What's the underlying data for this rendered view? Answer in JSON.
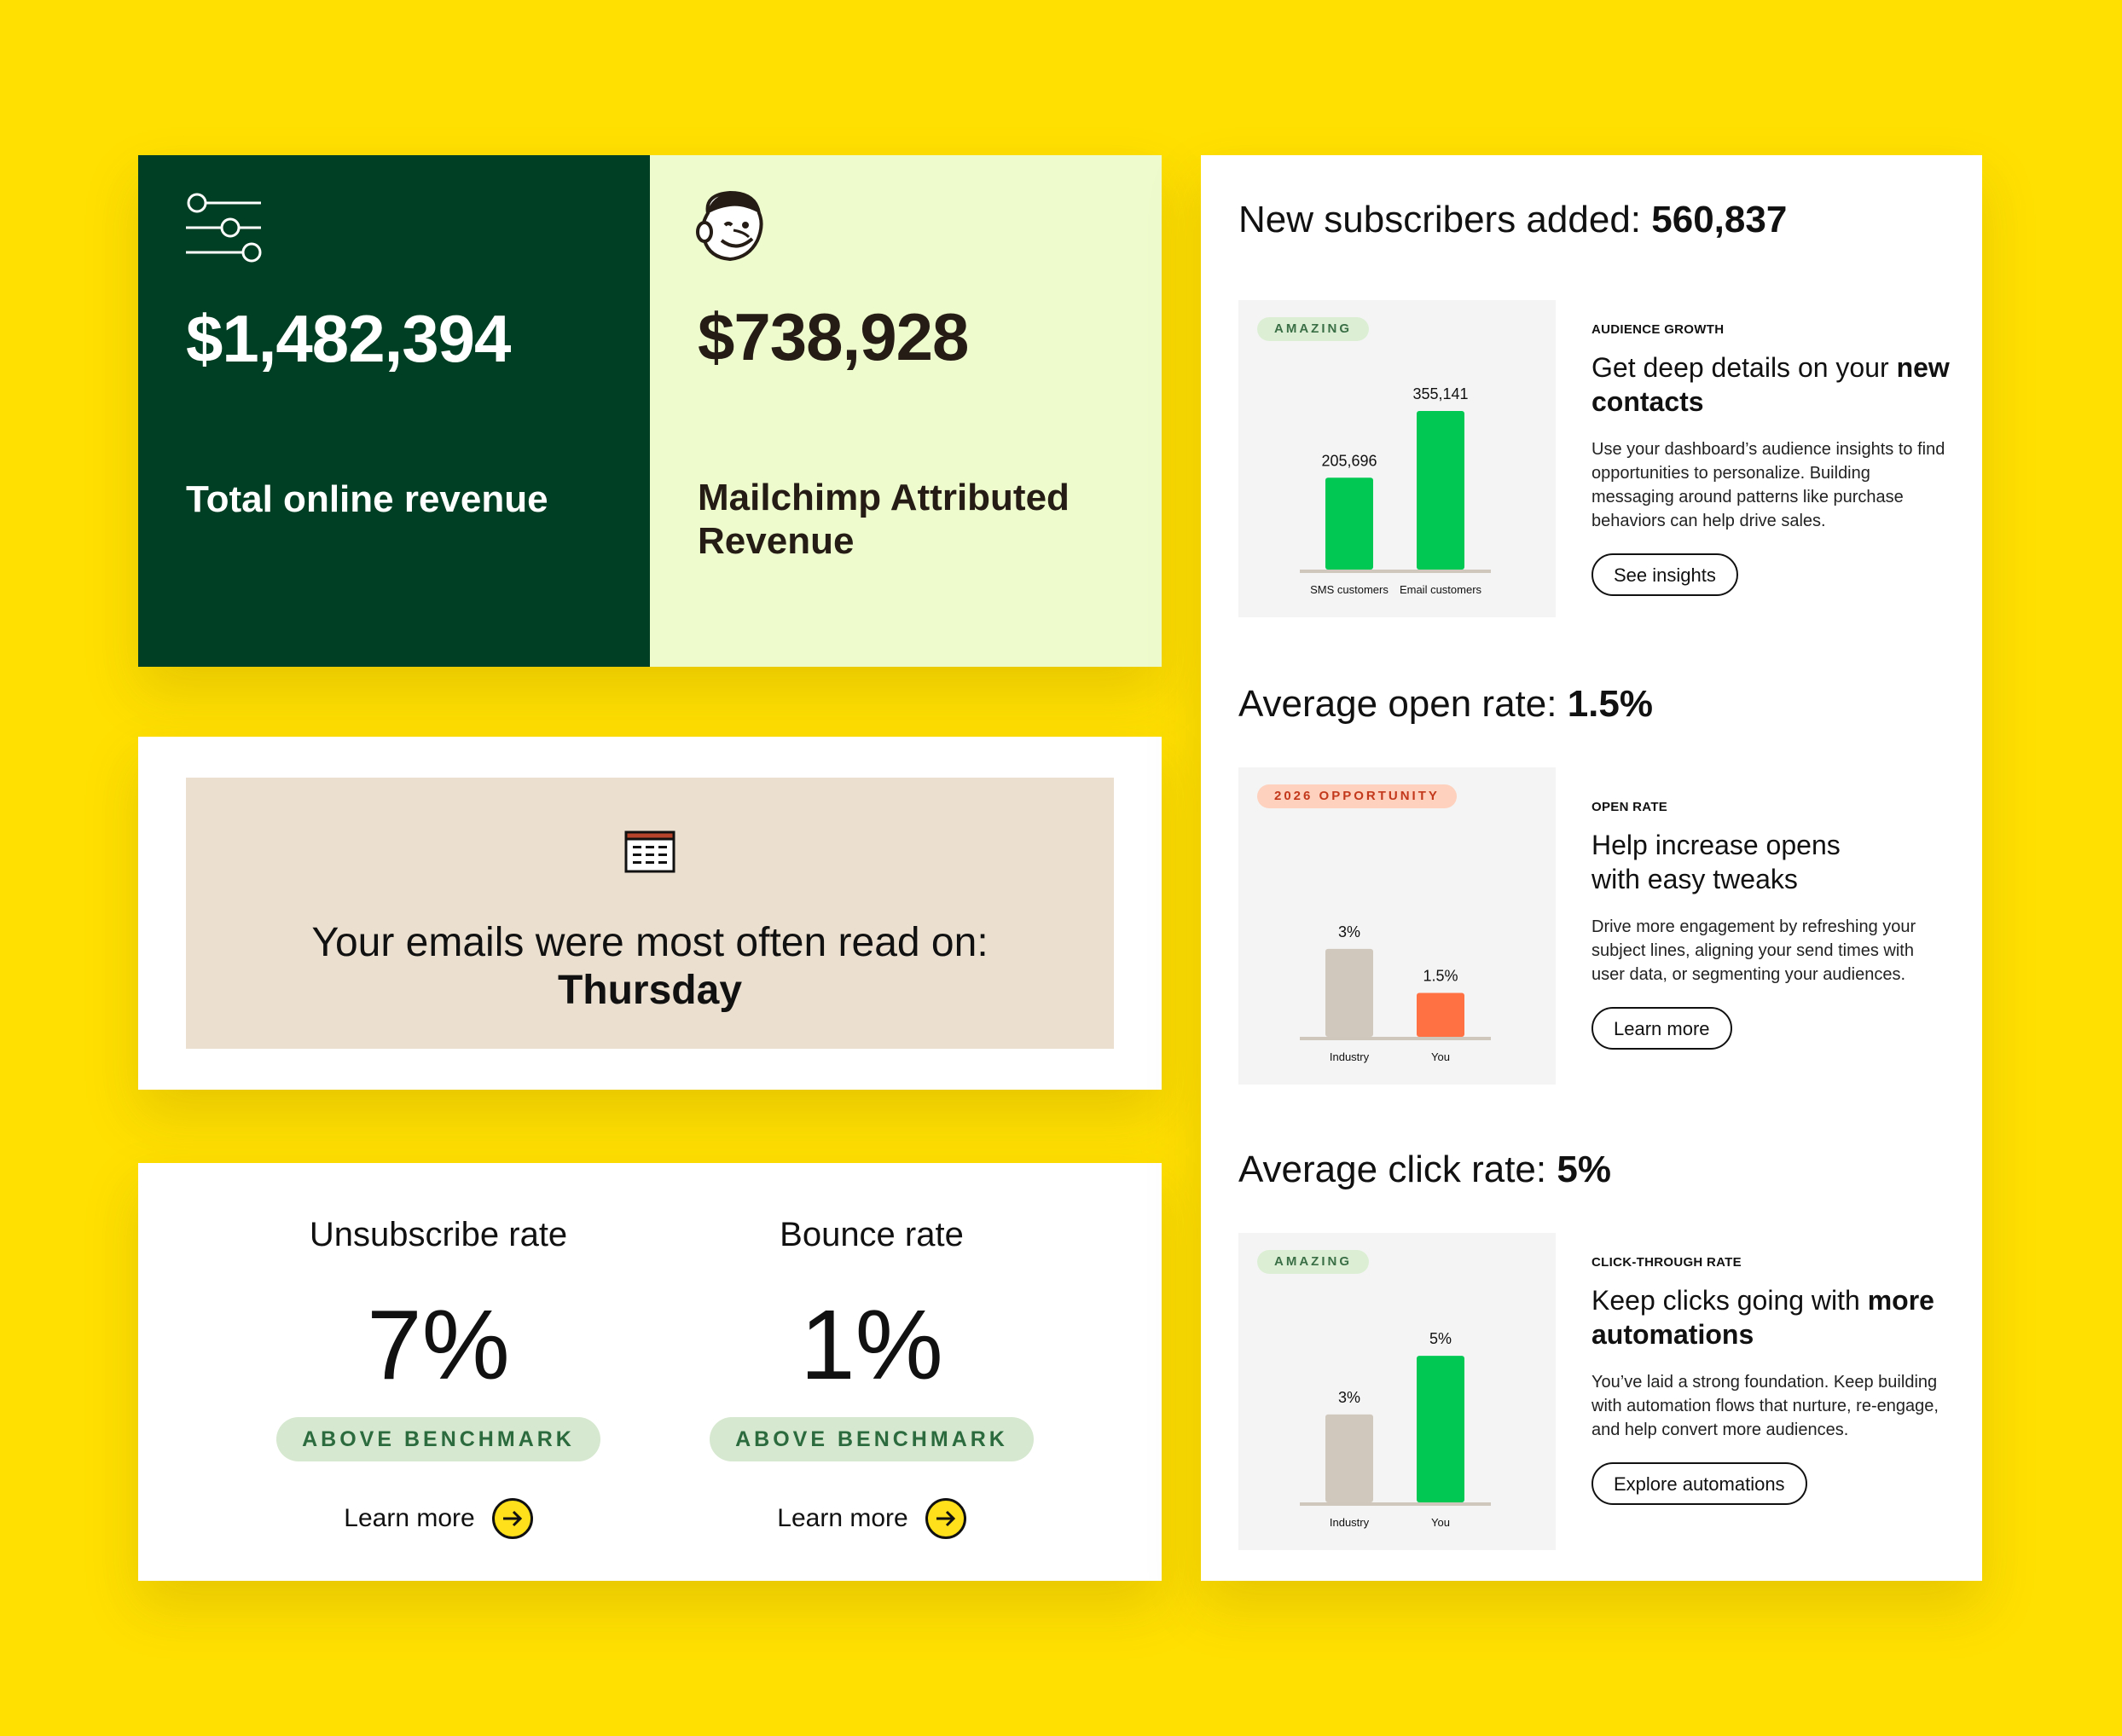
{
  "revenue": {
    "total": {
      "amount": "$1,482,394",
      "label": "Total online revenue",
      "icon": "sliders-icon"
    },
    "attributed": {
      "amount": "$738,928",
      "label": "Mailchimp Attributed Revenue",
      "icon": "freddie-logo-icon"
    }
  },
  "read_day": {
    "prefix": "Your emails were most often read on:",
    "day": "Thursday",
    "icon": "calendar-icon"
  },
  "rates": [
    {
      "title": "Unsubscribe rate",
      "value": "7%",
      "badge": "ABOVE BENCHMARK",
      "link": "Learn more"
    },
    {
      "title": "Bounce rate",
      "value": "1%",
      "badge": "ABOVE BENCHMARK",
      "link": "Learn more"
    }
  ],
  "sections": [
    {
      "heading_prefix": "New subscribers added: ",
      "heading_value": "560,837",
      "badge": "AMAZING",
      "badge_color": "#dcefd5",
      "eyebrow": "AUDIENCE GROWTH",
      "title_prefix": "Get deep details on your ",
      "title_bold": "new contacts",
      "body": "Use your dashboard’s audience insights to find opportunities to personalize. Building messaging around patterns like purchase behaviors can help drive sales.",
      "button": "See insights"
    },
    {
      "heading_prefix": "Average open rate: ",
      "heading_value": "1.5%",
      "badge": "2026 OPPORTUNITY",
      "badge_color": "#fdd1bd",
      "eyebrow": "OPEN RATE",
      "title_prefix": "Help increase opens with easy tweaks",
      "title_bold": "",
      "body": "Drive more engagement by refreshing your subject lines, aligning your send times with user data, or segmenting your audiences.",
      "button": "Learn more"
    },
    {
      "heading_prefix": "Average click rate: ",
      "heading_value": "5%",
      "badge": "AMAZING",
      "badge_color": "#dcefd5",
      "eyebrow": "CLICK-THROUGH RATE",
      "title_prefix": "Keep clicks going with ",
      "title_bold": "more automations",
      "body": "You’ve laid a strong foundation. Keep building with automation flows that nurture, re-engage, and help convert more audiences.",
      "button": "Explore automations"
    }
  ],
  "chart_data": [
    {
      "type": "bar",
      "title": "",
      "categories": [
        "SMS customers",
        "Email customers"
      ],
      "values": [
        205696,
        355141
      ],
      "value_labels": [
        "205,696",
        "355,141"
      ],
      "colors": [
        "#00c853",
        "#00c853"
      ],
      "ylim": [
        0,
        420000
      ]
    },
    {
      "type": "bar",
      "title": "",
      "categories": [
        "Industry",
        "You"
      ],
      "values": [
        3,
        1.5
      ],
      "value_labels": [
        "3%",
        "1.5%"
      ],
      "colors": [
        "#d1c8bd",
        "#ff7043"
      ],
      "ylim": [
        0,
        6.4
      ]
    },
    {
      "type": "bar",
      "title": "",
      "categories": [
        "Industry",
        "You"
      ],
      "values": [
        3,
        5
      ],
      "value_labels": [
        "3%",
        "5%"
      ],
      "colors": [
        "#d1c8bd",
        "#00c853"
      ],
      "ylim": [
        0,
        6.4
      ]
    }
  ],
  "colors": {
    "background": "#ffe000",
    "dark_green": "#003f23",
    "light_green": "#eefccd",
    "beige": "#ebe0cf",
    "accent_yellow": "#ffe01b"
  }
}
